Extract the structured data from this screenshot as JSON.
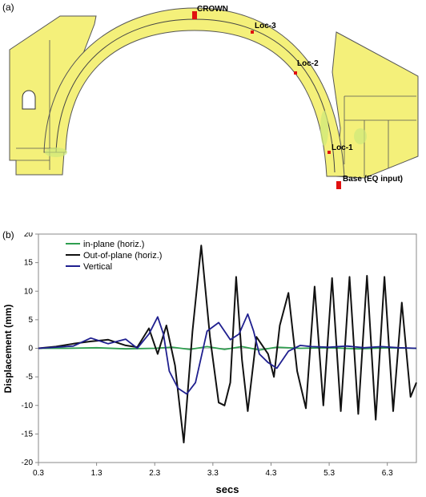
{
  "panel_a": {
    "label": "(a)",
    "fill_color": "#f4f07a",
    "markers": [
      {
        "label": "CROWN"
      },
      {
        "label": "Loc-3"
      },
      {
        "label": "Loc-2"
      },
      {
        "label": "Loc-1"
      },
      {
        "label": "Base (EQ input)"
      }
    ],
    "marker_color": "#e01010"
  },
  "chart_data": {
    "label": "(b)",
    "type": "line",
    "xlabel": "secs",
    "ylabel": "Displacement (mm)",
    "xlim": [
      0.3,
      6.8
    ],
    "ylim": [
      -20,
      20
    ],
    "xticks": [
      "0.3",
      "1.3",
      "2.3",
      "3.3",
      "4.3",
      "5.3",
      "6.3"
    ],
    "yticks": [
      "-20",
      "-15",
      "-10",
      "-5",
      "0",
      "5",
      "10",
      "15",
      "20"
    ],
    "grid": false,
    "legend_position": "top-left",
    "series": [
      {
        "name": "in-plane (horiz.)",
        "color": "#2e9e4f",
        "x": [
          0.3,
          0.8,
          1.3,
          1.8,
          2.3,
          2.6,
          2.9,
          3.2,
          3.5,
          3.8,
          4.1,
          4.4,
          4.8,
          5.3,
          5.8,
          6.3,
          6.8
        ],
        "y": [
          0,
          0,
          0.1,
          -0.1,
          0,
          0.2,
          -0.2,
          0.3,
          -0.2,
          0.3,
          -0.3,
          0.2,
          0,
          0.1,
          -0.1,
          0.1,
          0
        ]
      },
      {
        "name": "Out-of-plane (horiz.)",
        "color": "#111111",
        "x": [
          0.3,
          0.6,
          0.9,
          1.2,
          1.5,
          1.8,
          2.0,
          2.2,
          2.35,
          2.5,
          2.65,
          2.8,
          2.95,
          3.1,
          3.25,
          3.4,
          3.5,
          3.6,
          3.7,
          3.8,
          3.9,
          4.05,
          4.25,
          4.35,
          4.45,
          4.6,
          4.75,
          4.9,
          5.05,
          5.2,
          5.35,
          5.5,
          5.65,
          5.8,
          5.95,
          6.1,
          6.25,
          6.4,
          6.55,
          6.7,
          6.8
        ],
        "y": [
          0,
          0.3,
          0.8,
          1.2,
          1.5,
          0.5,
          0.2,
          3.5,
          -1,
          4,
          -3,
          -16.5,
          3,
          18,
          2,
          -9.5,
          -10,
          -6,
          12.5,
          -2,
          -11,
          2,
          -1,
          -5,
          4,
          9.7,
          -4,
          -10.5,
          10.8,
          -10,
          12.3,
          -11,
          12.5,
          -11.5,
          12.7,
          -12.5,
          12.5,
          -11,
          8,
          -8.5,
          -6
        ]
      },
      {
        "name": "Vertical",
        "color": "#1f1f8f",
        "x": [
          0.3,
          0.6,
          0.9,
          1.2,
          1.5,
          1.8,
          2.0,
          2.2,
          2.35,
          2.45,
          2.55,
          2.7,
          2.85,
          3.0,
          3.2,
          3.4,
          3.6,
          3.75,
          3.9,
          4.0,
          4.1,
          4.25,
          4.4,
          4.6,
          4.8,
          5.0,
          5.3,
          5.6,
          5.9,
          6.2,
          6.5,
          6.8
        ],
        "y": [
          0,
          0.2,
          0.4,
          1.8,
          0.8,
          1.6,
          0,
          2.5,
          5.5,
          2.5,
          -4,
          -7,
          -8,
          -6,
          3,
          4.5,
          1.5,
          2.5,
          6,
          3,
          -1,
          -2.5,
          -3.5,
          -0.5,
          0.5,
          0.3,
          0.2,
          0.4,
          0.1,
          0.3,
          0.1,
          0
        ]
      }
    ]
  }
}
